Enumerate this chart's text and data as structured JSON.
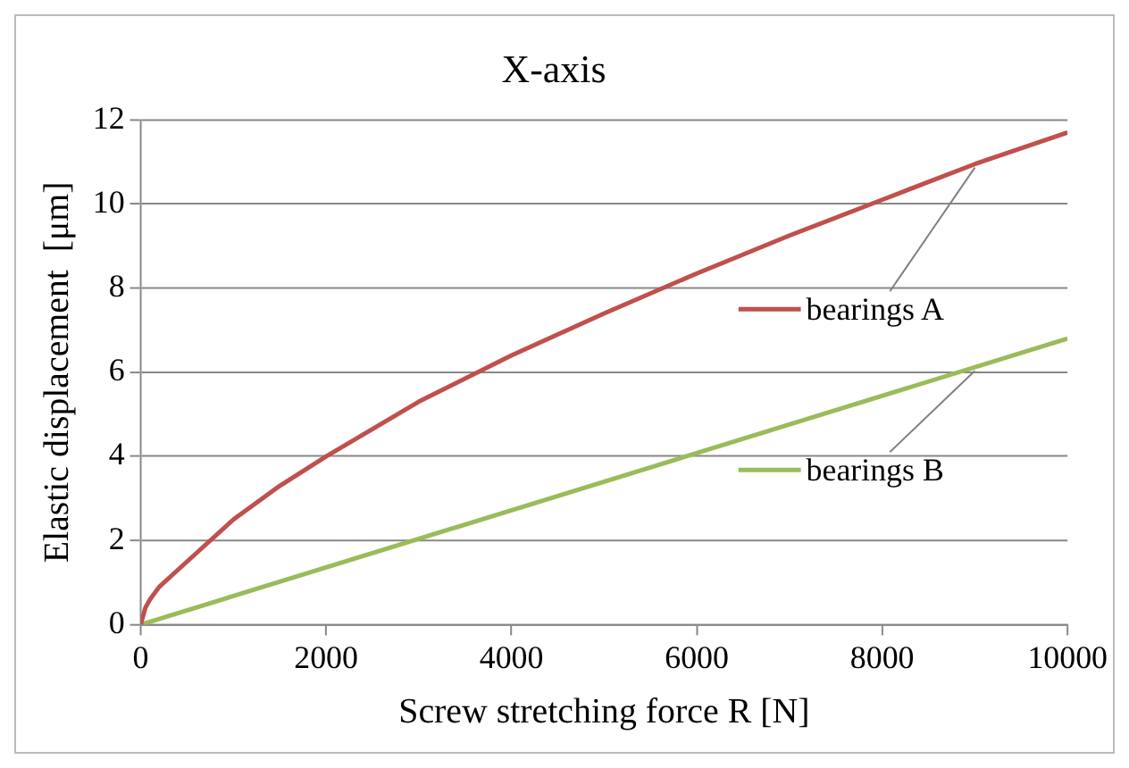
{
  "chart_data": {
    "type": "line",
    "title": "X-axis",
    "xlabel": "Screw stretching force R [N]",
    "ylabel": "Elastic displacement  [μm]",
    "xlim": [
      0,
      10000
    ],
    "xticks": [
      0,
      2000,
      4000,
      6000,
      8000,
      10000
    ],
    "ylim": [
      0,
      12
    ],
    "yticks": [
      0,
      2,
      4,
      6,
      8,
      10,
      12
    ],
    "grid": "y",
    "legend": "right",
    "marker": "none",
    "line_style": "solid",
    "series": [
      {
        "name": "bearings A",
        "color": "#c0504d",
        "x": [
          0,
          50,
          100,
          200,
          400,
          700,
          1000,
          1500,
          2000,
          3000,
          4000,
          5000,
          6000,
          7000,
          8000,
          9000,
          10000
        ],
        "values": [
          0,
          0.4,
          0.6,
          0.9,
          1.3,
          1.9,
          2.5,
          3.3,
          4.0,
          5.3,
          6.4,
          7.4,
          8.35,
          9.25,
          10.1,
          10.95,
          11.7
        ]
      },
      {
        "name": "bearings B",
        "color": "#9bbb59",
        "x": [
          0,
          10000
        ],
        "values": [
          0,
          6.8
        ]
      }
    ]
  }
}
